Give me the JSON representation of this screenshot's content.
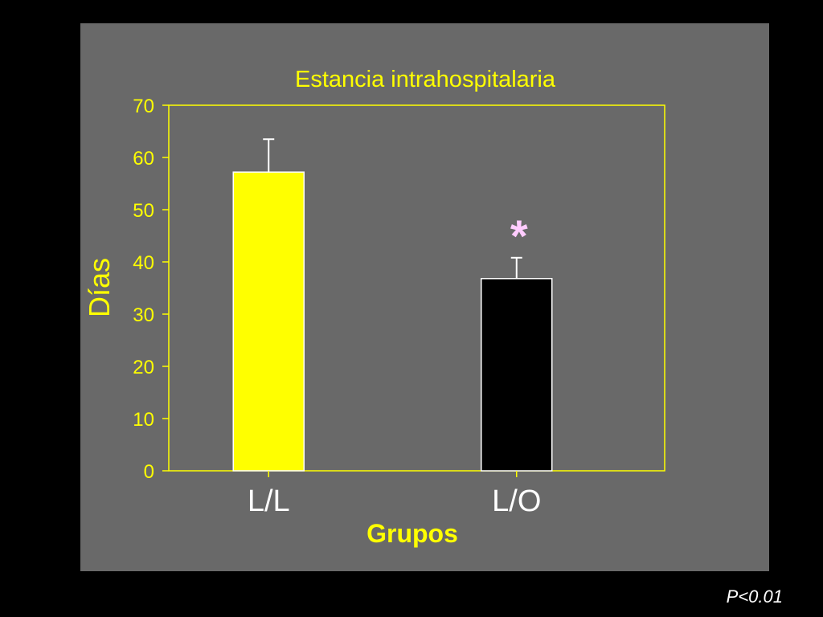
{
  "chart_data": {
    "type": "bar",
    "title": "Estancia intrahospitalaria",
    "xlabel": "Grupos",
    "ylabel": "Días",
    "categories": [
      "L/L",
      "L/O"
    ],
    "values": [
      57.2,
      36.8
    ],
    "error_upper": [
      63.5,
      40.8
    ],
    "bar_colors": [
      "#ffff00",
      "#000000"
    ],
    "ylim": [
      0,
      70
    ],
    "yticks": [
      "0",
      "10",
      "20",
      "30",
      "40",
      "50",
      "60",
      "70"
    ],
    "significance_marker": "*",
    "significance_on": "L/O",
    "grid": false,
    "legend": "none"
  },
  "colors": {
    "panel": "#696969",
    "axis": "#ffff00",
    "text": "#ffff00",
    "marker": "#ffccff"
  },
  "footnote": "P<0.01"
}
